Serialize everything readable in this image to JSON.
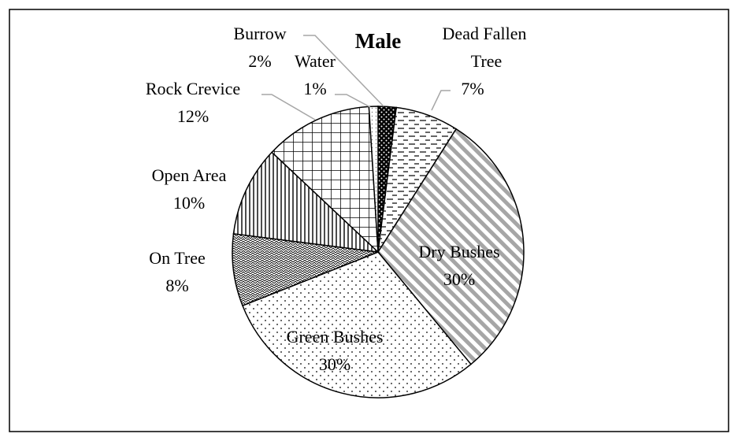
{
  "chart_data": {
    "type": "pie",
    "title": "Male",
    "categories": [
      "Burrow",
      "Dead Fallen Tree",
      "Dry Bushes",
      "Green Bushes",
      "On Tree",
      "Open Area",
      "Rock Crevice",
      "Water"
    ],
    "values": [
      2,
      7,
      30,
      30,
      8,
      10,
      12,
      1
    ],
    "value_labels": [
      "2%",
      "7%",
      "30%",
      "30%",
      "8%",
      "10%",
      "12%",
      "1%"
    ]
  }
}
